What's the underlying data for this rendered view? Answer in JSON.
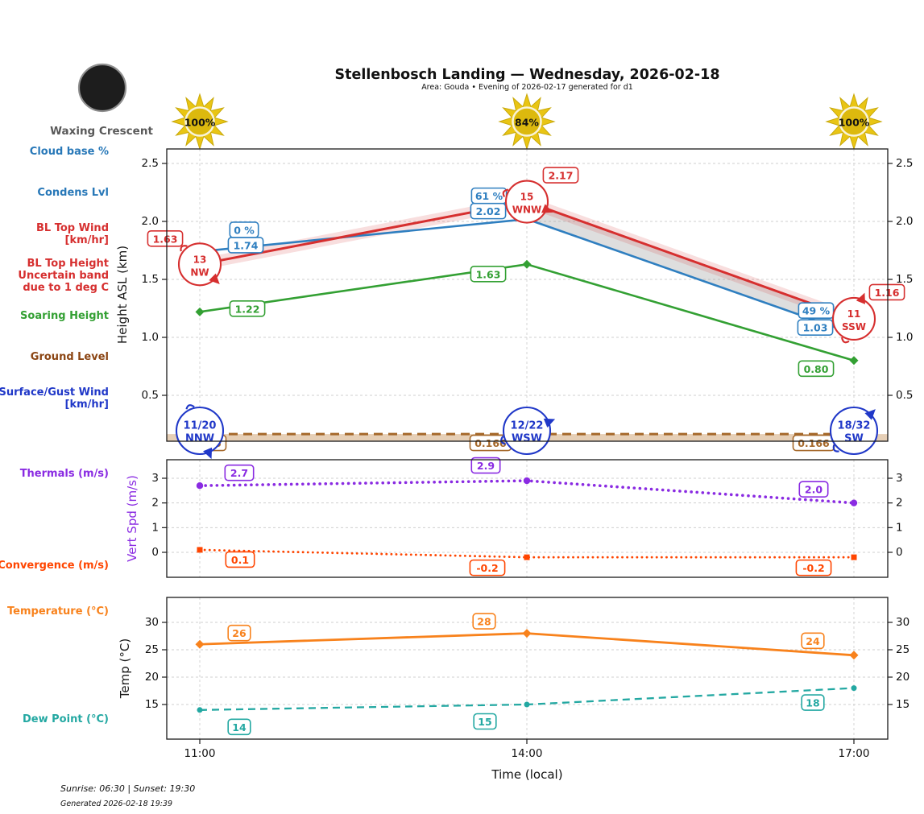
{
  "header": {
    "title": "Stellenbosch Landing — Wednesday, 2026-02-18",
    "subtitle": "Area: Gouda • Evening of 2026-02-17 generated for d1",
    "moon_phase": "Waxing Crescent",
    "sun_pcts": [
      "100%",
      "84%",
      "100%"
    ]
  },
  "axes": {
    "xlabel": "Time (local)",
    "xticks": [
      "11:00",
      "14:00",
      "17:00"
    ]
  },
  "left_labels": [
    {
      "lines": [
        "Cloud base %"
      ],
      "color": "#2878b8"
    },
    {
      "lines": [
        "Condens Lvl"
      ],
      "color": "#2878b8"
    },
    {
      "lines": [
        "BL Top Wind",
        "[km/hr]"
      ],
      "color": "#d62f2f"
    },
    {
      "lines": [
        "BL Top Height",
        "Uncertain band",
        "due to 1 deg C"
      ],
      "color": "#d62f2f"
    },
    {
      "lines": [
        "Soaring Height"
      ],
      "color": "#33a033"
    },
    {
      "lines": [
        "Ground Level"
      ],
      "color": "#8b4513"
    },
    {
      "lines": [
        "Surface/Gust Wind",
        "[km/hr]"
      ],
      "color": "#2038c8"
    },
    {
      "lines": [
        "Thermals (m/s)"
      ],
      "color": "#8a2be2"
    },
    {
      "lines": [
        "Convergence (m/s)"
      ],
      "color": "#ff4500"
    },
    {
      "lines": [
        "Temperature (°C)"
      ],
      "color": "#f8821c"
    },
    {
      "lines": [
        "Dew Point (°C)"
      ],
      "color": "#23a8a2"
    }
  ],
  "chart_data": [
    {
      "type": "line",
      "ylabel": "Height ASL (km)",
      "ylabel_color": "#1a1a1a",
      "x": [
        "11:00",
        "14:00",
        "17:00"
      ],
      "yticks": [
        0.5,
        1.0,
        1.5,
        2.0,
        2.5
      ],
      "ylim": [
        0.1,
        2.63
      ],
      "grid": true,
      "series": [
        {
          "name": "Condensation Level",
          "color": "#2f7fc0",
          "values": [
            1.74,
            2.02,
            1.03
          ],
          "labels": [
            "1.74",
            "2.02",
            "1.03"
          ],
          "style": "solid",
          "marker": "square"
        },
        {
          "name": "Cloud base %",
          "color": "#2f7fc0",
          "values": [
            1.74,
            2.02,
            1.03
          ],
          "labels": [
            "0 %",
            "61 %",
            "49 %"
          ],
          "style": "none"
        },
        {
          "name": "BL Top Height",
          "color": "#d62f2f",
          "values": [
            1.63,
            2.17,
            1.16
          ],
          "labels": [
            "1.63",
            "2.17",
            "1.16"
          ],
          "style": "solid",
          "uncertain_band": 0.05
        },
        {
          "name": "Soaring Height",
          "color": "#33a033",
          "values": [
            1.22,
            1.63,
            0.8
          ],
          "labels": [
            "1.22",
            "1.63",
            "0.80"
          ],
          "style": "solid",
          "marker": "diamond"
        },
        {
          "name": "Ground Level",
          "color": "#a5682a",
          "values": [
            0.166,
            0.166,
            0.166
          ],
          "labels": [
            "0.166",
            "0.166",
            "0.166"
          ],
          "style": "dashed",
          "fill_below": true
        }
      ],
      "bl_top_wind": [
        {
          "speed": "13",
          "dir": "NW"
        },
        {
          "speed": "15",
          "dir": "WNW"
        },
        {
          "speed": "11",
          "dir": "SSW"
        }
      ],
      "surface_wind": [
        {
          "speed_gust": "11/20",
          "dir": "NNW"
        },
        {
          "speed_gust": "12/22",
          "dir": "WSW"
        },
        {
          "speed_gust": "18/32",
          "dir": "SW"
        }
      ]
    },
    {
      "type": "line",
      "ylabel": "Vert Spd (m/s)",
      "ylabel_color": "#8a2be2",
      "x": [
        "11:00",
        "14:00",
        "17:00"
      ],
      "yticks": [
        0,
        1,
        2,
        3
      ],
      "ylim": [
        -1.0,
        3.75
      ],
      "grid": true,
      "series": [
        {
          "name": "Thermals (m/s)",
          "color": "#8a2be2",
          "values": [
            2.7,
            2.9,
            2.0
          ],
          "labels": [
            "2.7",
            "2.9",
            "2.0"
          ],
          "style": "dotted",
          "marker": "circle"
        },
        {
          "name": "Convergence (m/s)",
          "color": "#ff4500",
          "values": [
            0.1,
            -0.2,
            -0.2
          ],
          "labels": [
            "0.1",
            "-0.2",
            "-0.2"
          ],
          "style": "dotted",
          "marker": "square"
        }
      ]
    },
    {
      "type": "line",
      "ylabel": "Temp (°C)",
      "ylabel_color": "#1a1a1a",
      "x": [
        "11:00",
        "14:00",
        "17:00"
      ],
      "yticks": [
        15,
        20,
        25,
        30
      ],
      "ylim": [
        8.7,
        34.6
      ],
      "grid": true,
      "series": [
        {
          "name": "Temperature (°C)",
          "color": "#f8821c",
          "values": [
            26,
            28,
            24
          ],
          "labels": [
            "26",
            "28",
            "24"
          ],
          "style": "solid",
          "marker": "diamond"
        },
        {
          "name": "Dew Point (°C)",
          "color": "#23a8a2",
          "values": [
            14,
            15,
            18
          ],
          "labels": [
            "14",
            "15",
            "18"
          ],
          "style": "dashed",
          "marker": "circle"
        }
      ]
    }
  ],
  "footer": {
    "sun_times": "Sunrise: 06:30 | Sunset: 19:30",
    "generated": "Generated 2026-02-18 19:39"
  }
}
